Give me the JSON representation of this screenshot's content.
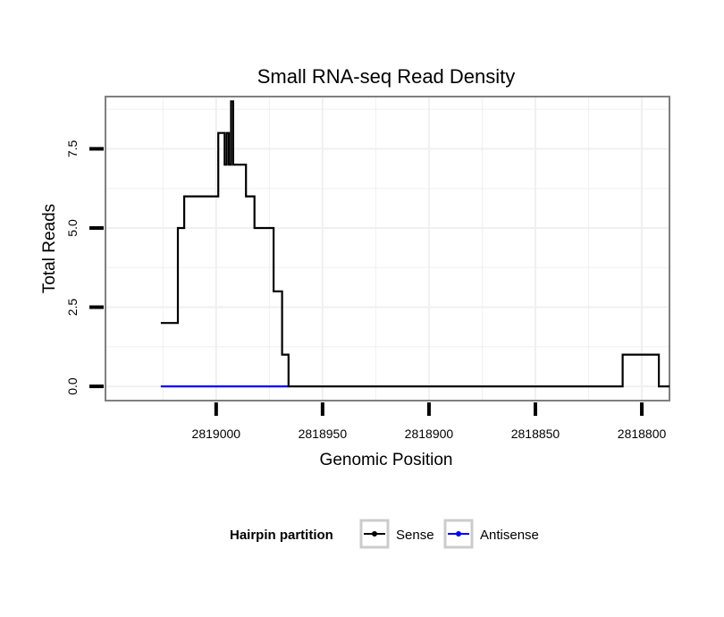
{
  "chart_data": {
    "type": "line",
    "title": "Small RNA-seq Read Density",
    "xlabel": "Genomic Position",
    "ylabel": "Total Reads",
    "x_reversed": true,
    "xlim": [
      2819052,
      2818787
    ],
    "ylim": [
      -0.45,
      9.15
    ],
    "x_ticks": [
      2819000,
      2818950,
      2818900,
      2818850,
      2818800
    ],
    "x_tick_labels": [
      "2819000",
      "2818950",
      "2818900",
      "2818850",
      "2818800"
    ],
    "y_ticks": [
      0,
      2.5,
      5,
      7.5
    ],
    "y_tick_labels": [
      "0.0",
      "2.5",
      "5.0",
      "7.5"
    ],
    "grid": true,
    "legend": {
      "title": "Hairpin partition",
      "position": "bottom",
      "entries": [
        {
          "label": "Sense",
          "color": "#000000"
        },
        {
          "label": "Antisense",
          "color": "#0000ff"
        }
      ]
    },
    "series": [
      {
        "name": "Sense",
        "color": "#000000",
        "step": true,
        "x": [
          2819026,
          2819022,
          2819018,
          2819017,
          2819015,
          2819010,
          2818999,
          2818998,
          2818996,
          2818995,
          2818994,
          2818993,
          2818992,
          2818991,
          2818990,
          2818987,
          2818986,
          2818982,
          2818976,
          2818973,
          2818970,
          2818969,
          2818967,
          2818966,
          2818810,
          2818809,
          2818797,
          2818792,
          2818787
        ],
        "y": [
          2,
          2,
          5,
          5,
          6,
          6,
          8,
          8,
          7,
          8,
          7,
          9,
          7,
          7,
          7,
          7,
          6,
          5,
          5,
          3,
          3,
          1,
          1,
          0,
          0,
          1,
          1,
          0,
          0
        ]
      },
      {
        "name": "Antisense",
        "color": "#0000ff",
        "step": true,
        "x": [
          2819026,
          2818966
        ],
        "y": [
          0,
          0
        ]
      }
    ]
  }
}
